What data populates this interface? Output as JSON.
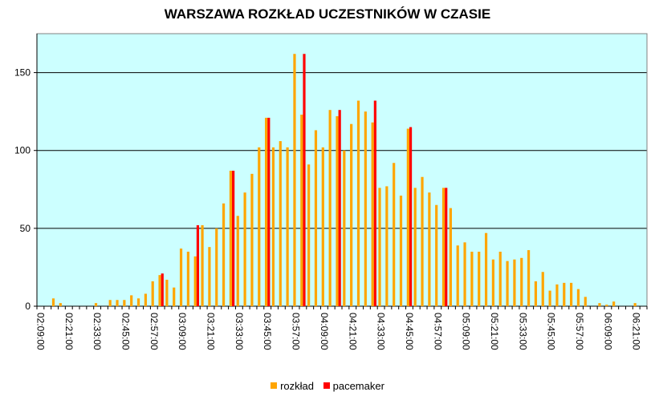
{
  "chart_data": {
    "type": "bar",
    "title": "WARSZAWA ROZKŁAD UCZESTNIKÓW W CZASIE",
    "xlabel": "",
    "ylabel": "",
    "ylim": [
      0,
      175
    ],
    "yticks": [
      0,
      50,
      100,
      150
    ],
    "grid": true,
    "legend_position": "bottom",
    "x_tick_labels": [
      "02:09:00",
      "02:21:00",
      "02:33:00",
      "02:45:00",
      "02:57:00",
      "03:09:00",
      "03:21:00",
      "03:33:00",
      "03:45:00",
      "03:57:00",
      "04:09:00",
      "04:21:00",
      "04:33:00",
      "04:45:00",
      "04:57:00",
      "05:09:00",
      "05:21:00",
      "05:33:00",
      "05:45:00",
      "05:57:00",
      "06:09:00",
      "06:21:00"
    ],
    "series": [
      {
        "name": "rozkład",
        "color": "#FFA500",
        "values": [
          0,
          0,
          5,
          2,
          0,
          0,
          0,
          0,
          2,
          0,
          4,
          4,
          4,
          7,
          5,
          8,
          16,
          20,
          17,
          12,
          37,
          35,
          32,
          52,
          38,
          50,
          66,
          87,
          58,
          73,
          85,
          102,
          121,
          102,
          106,
          102,
          162,
          123,
          91,
          113,
          102,
          126,
          122,
          100,
          117,
          132,
          125,
          118,
          76,
          77,
          92,
          71,
          114,
          76,
          83,
          73,
          65,
          76,
          63,
          39,
          41,
          35,
          35,
          47,
          30,
          35,
          29,
          30,
          31,
          36,
          16,
          22,
          10,
          14,
          15,
          15,
          11,
          6,
          0,
          2,
          1,
          3,
          0,
          0,
          2,
          0
        ]
      },
      {
        "name": "pacemaker",
        "color": "#FF0000",
        "values": [
          0,
          0,
          0,
          0,
          0,
          0,
          0,
          0,
          0,
          0,
          0,
          0,
          0,
          0,
          0,
          0,
          0,
          21,
          0,
          0,
          0,
          0,
          52,
          0,
          0,
          0,
          0,
          87,
          0,
          0,
          0,
          0,
          121,
          0,
          0,
          0,
          0,
          162,
          0,
          0,
          0,
          0,
          126,
          0,
          0,
          0,
          0,
          132,
          0,
          0,
          0,
          0,
          115,
          0,
          0,
          0,
          0,
          76,
          0,
          0,
          0,
          0,
          0,
          0,
          0,
          0,
          0,
          0,
          0,
          0,
          0,
          0,
          0,
          0,
          0,
          0,
          0,
          0,
          0,
          0,
          0,
          0,
          0,
          0,
          0,
          0
        ]
      }
    ]
  }
}
